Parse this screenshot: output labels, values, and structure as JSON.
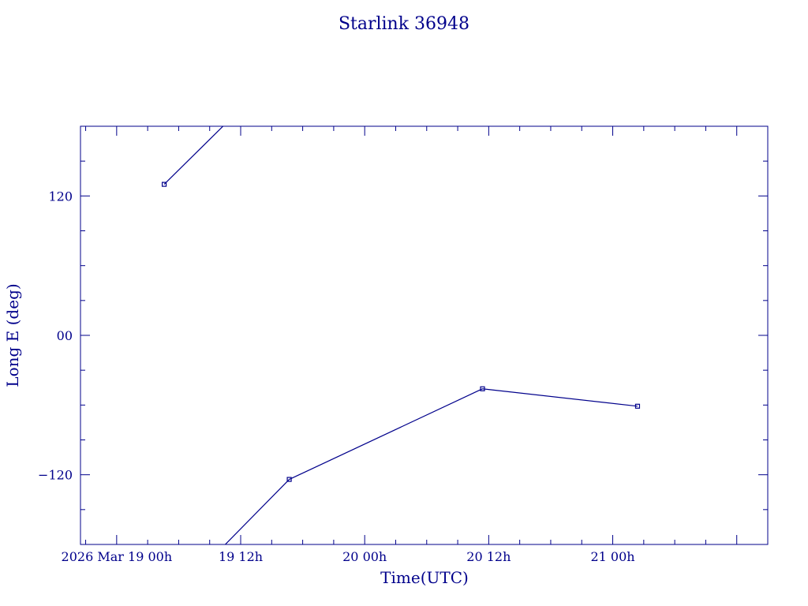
{
  "chart_data": {
    "type": "line",
    "title": "Starlink 36948",
    "xlabel": "Time(UTC)",
    "ylabel": "Long E (deg)",
    "x_units": "hours since 2026 Mar 19 00h",
    "xlim": [
      -3.5,
      63
    ],
    "ylim": [
      -180,
      180
    ],
    "xticks": [
      {
        "x": 0,
        "label": "2026 Mar 19  00h"
      },
      {
        "x": 12,
        "label": "19  12h"
      },
      {
        "x": 24,
        "label": "20  00h"
      },
      {
        "x": 36,
        "label": "20  12h"
      },
      {
        "x": 48,
        "label": "21  00h"
      }
    ],
    "yticks": [
      {
        "y": 120,
        "label": "120"
      },
      {
        "y": 0,
        "label": "00"
      },
      {
        "y": -120,
        "label": "−120"
      }
    ],
    "series": [
      {
        "segments": [
          [
            [
              4.6,
              130
            ],
            [
              10.4,
              181
            ]
          ],
          [
            [
              10.4,
              -181
            ],
            [
              16.7,
              -124
            ]
          ],
          [
            [
              16.7,
              -124
            ],
            [
              35.4,
              -46
            ]
          ],
          [
            [
              35.4,
              -46
            ],
            [
              50.4,
              -61
            ]
          ]
        ],
        "markers": [
          [
            4.6,
            130
          ],
          [
            16.7,
            -124
          ],
          [
            35.4,
            -46
          ],
          [
            50.4,
            -61
          ]
        ],
        "color": "#00008b"
      }
    ],
    "grid": false,
    "legend": "none"
  }
}
